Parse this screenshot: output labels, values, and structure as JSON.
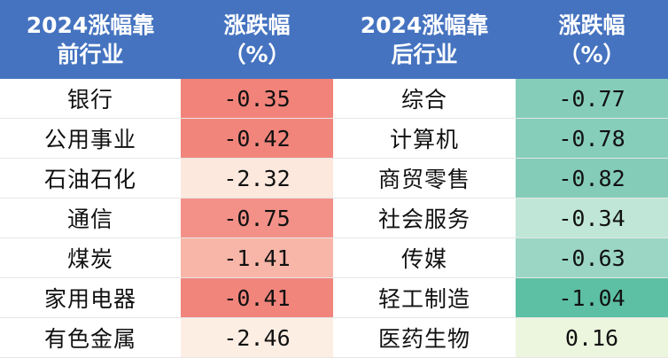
{
  "headers": {
    "left_industry": [
      "2024涨幅靠",
      "前行业"
    ],
    "left_change": [
      "涨跌幅",
      "（%）"
    ],
    "right_industry": [
      "2024涨幅靠",
      "后行业"
    ],
    "right_change": [
      "涨跌幅",
      "（%）"
    ]
  },
  "rows": [
    {
      "left_name": "银行",
      "left_value": "-0.35",
      "left_color": "#f1837a",
      "right_name": "综合",
      "right_value": "-0.77",
      "right_color": "#85cdb9"
    },
    {
      "left_name": "公用事业",
      "left_value": "-0.42",
      "left_color": "#f1857c",
      "right_name": "计算机",
      "right_value": "-0.78",
      "right_color": "#86cdba"
    },
    {
      "left_name": "石油石化",
      "left_value": "-2.32",
      "left_color": "#fce8dd",
      "right_name": "商贸零售",
      "right_value": "-0.82",
      "right_color": "#84ccb8"
    },
    {
      "left_name": "通信",
      "left_value": "-0.75",
      "left_color": "#f39188",
      "right_name": "社会服务",
      "right_value": "-0.34",
      "right_color": "#bfe6d6"
    },
    {
      "left_name": "煤炭",
      "left_value": "-1.41",
      "left_color": "#f8b6a8",
      "right_name": "传媒",
      "right_value": "-0.63",
      "right_color": "#9ad6c3"
    },
    {
      "left_name": "家用电器",
      "left_value": "-0.41",
      "left_color": "#f1857c",
      "right_name": "轻工制造",
      "right_value": "-1.04",
      "right_color": "#5dbfa4"
    },
    {
      "left_name": "有色金属",
      "left_value": "-2.46",
      "left_color": "#fdeee4",
      "right_name": "医药生物",
      "right_value": "0.16",
      "right_color": "#ecf6de"
    }
  ]
}
